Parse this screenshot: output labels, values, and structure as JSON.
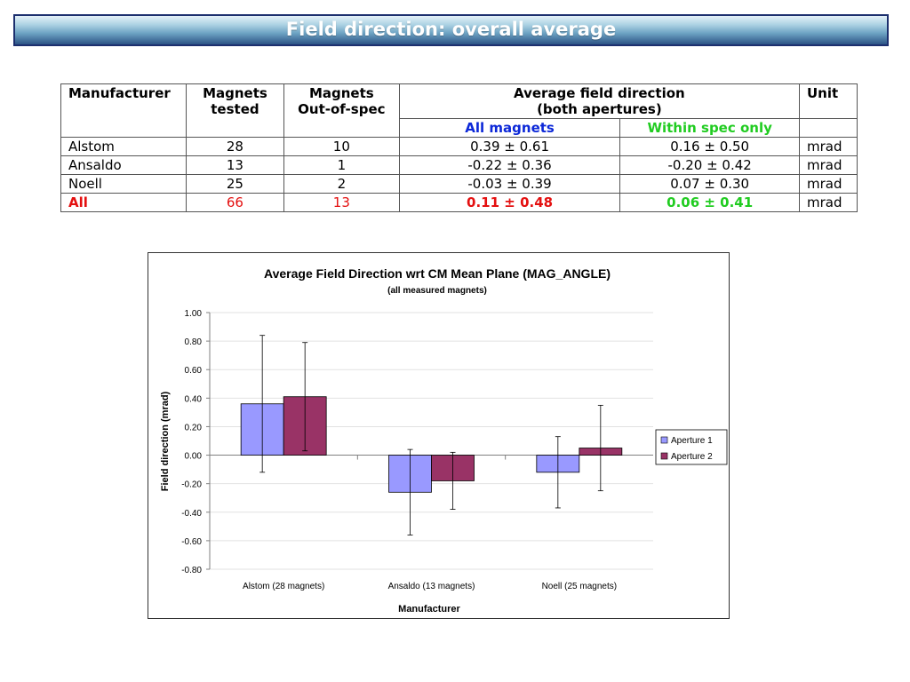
{
  "page_title": "Field direction: overall average",
  "table": {
    "headers": {
      "manufacturer": "Manufacturer",
      "tested_line1": "Magnets",
      "tested_line2": "tested",
      "oos_line1": "Magnets",
      "oos_line2": "Out-of-spec",
      "avg_line1": "Average field direction",
      "avg_line2": "(both apertures)",
      "unit": "Unit",
      "all_magnets": "All magnets",
      "within_spec": "Within spec only"
    },
    "rows": [
      {
        "manufacturer": "Alstom",
        "tested": "28",
        "out_of_spec": "10",
        "all_magnets": "0.39 ± 0.61",
        "within_spec": "0.16 ± 0.50",
        "unit": "mrad"
      },
      {
        "manufacturer": "Ansaldo",
        "tested": "13",
        "out_of_spec": "1",
        "all_magnets": "-0.22 ± 0.36",
        "within_spec": "-0.20 ± 0.42",
        "unit": "mrad"
      },
      {
        "manufacturer": "Noell",
        "tested": "25",
        "out_of_spec": "2",
        "all_magnets": "-0.03 ± 0.39",
        "within_spec": "0.07 ± 0.30",
        "unit": "mrad"
      },
      {
        "manufacturer": "All",
        "tested": "66",
        "out_of_spec": "13",
        "all_magnets": "0.11 ± 0.48",
        "within_spec": "0.06 ± 0.41",
        "unit": "mrad"
      }
    ]
  },
  "chart_data": {
    "type": "bar",
    "title": "Average Field Direction wrt CM Mean Plane (MAG_ANGLE)",
    "subtitle": "(all measured magnets)",
    "xlabel": "Manufacturer",
    "ylabel": "Field direction (mrad)",
    "categories": [
      "Alstom (28 magnets)",
      "Ansaldo (13 magnets)",
      "Noell (25 magnets)"
    ],
    "ylim": [
      -0.8,
      1.0
    ],
    "yticks": [
      "1.00",
      "0.80",
      "0.60",
      "0.40",
      "0.20",
      "0.00",
      "-0.20",
      "-0.40",
      "-0.60",
      "-0.80"
    ],
    "series": [
      {
        "name": "Aperture 1",
        "color": "#9999ff",
        "values": [
          0.36,
          -0.26,
          -0.12
        ],
        "errors": [
          0.48,
          0.3,
          0.25
        ]
      },
      {
        "name": "Aperture 2",
        "color": "#993366",
        "values": [
          0.41,
          -0.18,
          0.05
        ],
        "errors": [
          0.38,
          0.2,
          0.3
        ]
      }
    ],
    "grid": true,
    "legend": "right"
  }
}
